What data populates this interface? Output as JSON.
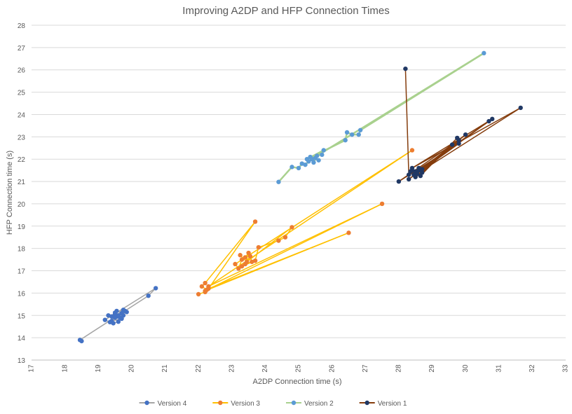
{
  "chart_data": {
    "type": "scatter",
    "title": "Improving A2DP and HFP Connection Times",
    "xlabel": "A2DP Connection time (s)",
    "ylabel": "HFP Connection time (s)",
    "xlim": [
      17,
      33
    ],
    "ylim": [
      13,
      28
    ],
    "x_ticks": [
      17,
      18,
      19,
      20,
      21,
      22,
      23,
      24,
      25,
      26,
      27,
      28,
      29,
      30,
      31,
      32,
      33
    ],
    "y_ticks": [
      13,
      14,
      15,
      16,
      17,
      18,
      19,
      20,
      21,
      22,
      23,
      24,
      25,
      26,
      27,
      28
    ],
    "grid": "horizontal",
    "legend_position": "bottom",
    "series": [
      {
        "name": "Version 4",
        "line_color": "#A5A5A5",
        "marker_color": "#4472C4",
        "points": [
          [
            18.5,
            13.85
          ],
          [
            18.45,
            13.9
          ],
          [
            20.5,
            15.88
          ],
          [
            20.72,
            16.22
          ],
          [
            19.2,
            14.8
          ],
          [
            19.35,
            14.7
          ],
          [
            19.45,
            14.65
          ],
          [
            19.6,
            14.72
          ],
          [
            19.4,
            14.95
          ],
          [
            19.5,
            15.05
          ],
          [
            19.55,
            15.2
          ],
          [
            19.7,
            15.1
          ],
          [
            19.8,
            15.2
          ],
          [
            19.65,
            14.9
          ],
          [
            19.75,
            15.0
          ],
          [
            19.5,
            14.9
          ],
          [
            19.3,
            15.0
          ],
          [
            19.85,
            15.15
          ],
          [
            19.6,
            15.0
          ],
          [
            19.7,
            14.85
          ],
          [
            19.4,
            14.75
          ],
          [
            19.55,
            14.95
          ],
          [
            19.75,
            15.25
          ],
          [
            19.5,
            15.12
          ]
        ]
      },
      {
        "name": "Version 3",
        "line_color": "#FFC000",
        "marker_color": "#ED7D31",
        "points": [
          [
            22.0,
            15.95
          ],
          [
            22.2,
            16.05
          ],
          [
            22.25,
            16.15
          ],
          [
            22.1,
            16.3
          ],
          [
            22.2,
            16.45
          ],
          [
            23.7,
            19.2
          ],
          [
            22.3,
            16.2
          ],
          [
            26.5,
            18.7
          ],
          [
            22.2,
            16.1
          ],
          [
            27.5,
            20.0
          ],
          [
            22.3,
            16.3
          ],
          [
            28.4,
            22.4
          ],
          [
            23.1,
            17.3
          ],
          [
            23.2,
            17.1
          ],
          [
            23.3,
            17.5
          ],
          [
            23.4,
            17.6
          ],
          [
            23.5,
            17.8
          ],
          [
            23.4,
            17.3
          ],
          [
            23.6,
            17.4
          ],
          [
            23.55,
            17.65
          ],
          [
            23.3,
            17.2
          ],
          [
            23.7,
            17.45
          ],
          [
            23.8,
            18.05
          ],
          [
            24.4,
            18.35
          ],
          [
            24.6,
            18.5
          ],
          [
            24.8,
            18.95
          ],
          [
            23.45,
            17.4
          ],
          [
            23.25,
            17.7
          ]
        ]
      },
      {
        "name": "Version 2",
        "line_color": "#A9D18E",
        "marker_color": "#5B9BD5",
        "points": [
          [
            24.4,
            20.98
          ],
          [
            24.8,
            21.65
          ],
          [
            25.0,
            21.6
          ],
          [
            25.1,
            21.8
          ],
          [
            25.2,
            21.75
          ],
          [
            25.3,
            21.9
          ],
          [
            25.4,
            22.0
          ],
          [
            25.5,
            22.05
          ],
          [
            25.6,
            21.95
          ],
          [
            25.35,
            22.1
          ],
          [
            25.7,
            22.2
          ],
          [
            25.75,
            22.4
          ],
          [
            25.25,
            22.0
          ],
          [
            26.4,
            22.85
          ],
          [
            26.45,
            23.2
          ],
          [
            26.6,
            23.1
          ],
          [
            26.8,
            23.1
          ],
          [
            26.85,
            23.3
          ],
          [
            30.55,
            26.75
          ],
          [
            25.55,
            22.15
          ],
          [
            25.45,
            21.85
          ]
        ]
      },
      {
        "name": "Version 1",
        "line_color": "#843C0C",
        "marker_color": "#203864",
        "points": [
          [
            28.2,
            26.05
          ],
          [
            28.3,
            21.3
          ],
          [
            28.4,
            21.5
          ],
          [
            28.5,
            21.45
          ],
          [
            28.6,
            21.6
          ],
          [
            28.45,
            21.3
          ],
          [
            29.8,
            22.85
          ],
          [
            28.7,
            21.4
          ],
          [
            28.5,
            21.2
          ],
          [
            30.0,
            23.1
          ],
          [
            28.3,
            21.1
          ],
          [
            30.7,
            23.7
          ],
          [
            28.6,
            21.5
          ],
          [
            30.8,
            23.8
          ],
          [
            28.4,
            21.6
          ],
          [
            31.65,
            24.3
          ],
          [
            28.55,
            21.35
          ],
          [
            29.8,
            22.7
          ],
          [
            28.0,
            21.0
          ],
          [
            29.6,
            22.65
          ],
          [
            28.7,
            21.55
          ],
          [
            28.35,
            21.45
          ],
          [
            28.65,
            21.25
          ],
          [
            29.75,
            22.95
          ]
        ]
      }
    ]
  }
}
